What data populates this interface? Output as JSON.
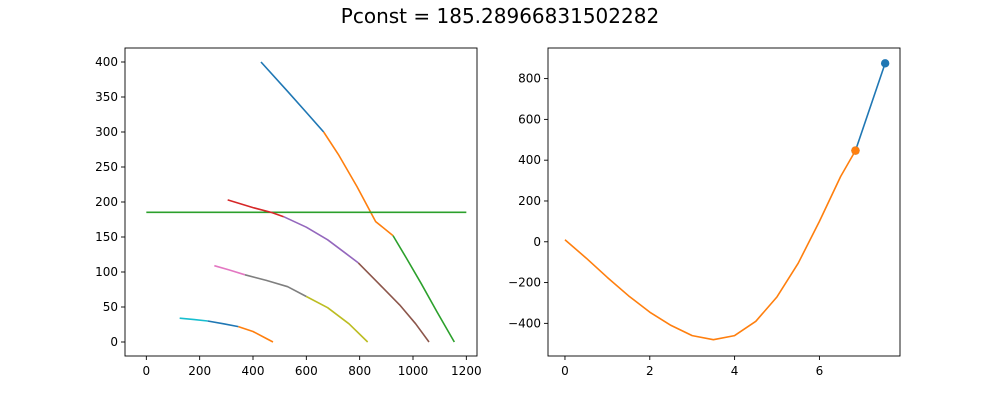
{
  "figure": {
    "title": "Pconst = 185.28966831502282"
  },
  "chart_data": [
    {
      "type": "line",
      "title": "",
      "xlabel": "",
      "ylabel": "",
      "xlim": [
        -80,
        1240
      ],
      "ylim": [
        -20,
        420
      ],
      "xticks": [
        0,
        200,
        400,
        600,
        800,
        1000,
        1200
      ],
      "yticks": [
        0,
        50,
        100,
        150,
        200,
        250,
        300,
        350,
        400
      ],
      "grid": false,
      "series": [
        {
          "color": "#1f77b4",
          "x": [
            430,
            530,
            600,
            665
          ],
          "y": [
            400,
            358,
            328,
            300
          ]
        },
        {
          "color": "#ff7f0e",
          "x": [
            665,
            720,
            790,
            860,
            925
          ],
          "y": [
            300,
            268,
            222,
            172,
            152
          ]
        },
        {
          "color": "#2ca02c",
          "x": [
            925,
            975,
            1030,
            1090,
            1155
          ],
          "y": [
            152,
            120,
            84,
            43,
            0
          ]
        },
        {
          "color": "#2ca02c",
          "x": [
            0,
            1200
          ],
          "y": [
            185.28966831502282,
            185.28966831502282
          ]
        },
        {
          "color": "#d62728",
          "x": [
            305,
            400,
            470,
            515
          ],
          "y": [
            203,
            192,
            185,
            179
          ]
        },
        {
          "color": "#9467bd",
          "x": [
            515,
            600,
            680,
            750,
            795
          ],
          "y": [
            179,
            164,
            146,
            126,
            113
          ]
        },
        {
          "color": "#8c564b",
          "x": [
            795,
            870,
            950,
            1010,
            1060
          ],
          "y": [
            113,
            84,
            53,
            26,
            0
          ]
        },
        {
          "color": "#e377c2",
          "x": [
            255,
            310,
            370
          ],
          "y": [
            109,
            103,
            96
          ]
        },
        {
          "color": "#7f7f7f",
          "x": [
            370,
            450,
            530,
            600
          ],
          "y": [
            96,
            88,
            79,
            65
          ]
        },
        {
          "color": "#bcbd22",
          "x": [
            600,
            680,
            760,
            830
          ],
          "y": [
            65,
            49,
            26,
            0
          ]
        },
        {
          "color": "#17becf",
          "x": [
            125,
            180,
            230
          ],
          "y": [
            34,
            32,
            30
          ]
        },
        {
          "color": "#1f77b4",
          "x": [
            230,
            290,
            345
          ],
          "y": [
            30,
            26,
            22
          ]
        },
        {
          "color": "#ff7f0e",
          "x": [
            345,
            400,
            450,
            475
          ],
          "y": [
            22,
            15,
            5,
            0
          ]
        }
      ]
    },
    {
      "type": "line",
      "title": "",
      "xlabel": "",
      "ylabel": "",
      "xlim": [
        -0.4,
        7.9
      ],
      "ylim": [
        -560,
        950
      ],
      "xticks": [
        0,
        2,
        4,
        6
      ],
      "yticks": [
        -400,
        -200,
        0,
        200,
        400,
        600,
        800
      ],
      "ytick_labels": [
        "−400",
        "−200",
        "0",
        "200",
        "400",
        "600",
        "800"
      ],
      "grid": false,
      "series": [
        {
          "color": "#1f77b4",
          "x": [
            6.85,
            7.55
          ],
          "y": [
            447,
            875
          ],
          "markers": "endpoints"
        },
        {
          "color": "#ff7f0e",
          "x": [
            0,
            0.5,
            1,
            1.5,
            2,
            2.5,
            3,
            3.5,
            4,
            4.5,
            5,
            5.5,
            6,
            6.5,
            6.85
          ],
          "y": [
            10,
            -80,
            -175,
            -265,
            -345,
            -410,
            -460,
            -480,
            -460,
            -390,
            -270,
            -105,
            100,
            320,
            447
          ],
          "markers": "last"
        }
      ]
    }
  ]
}
